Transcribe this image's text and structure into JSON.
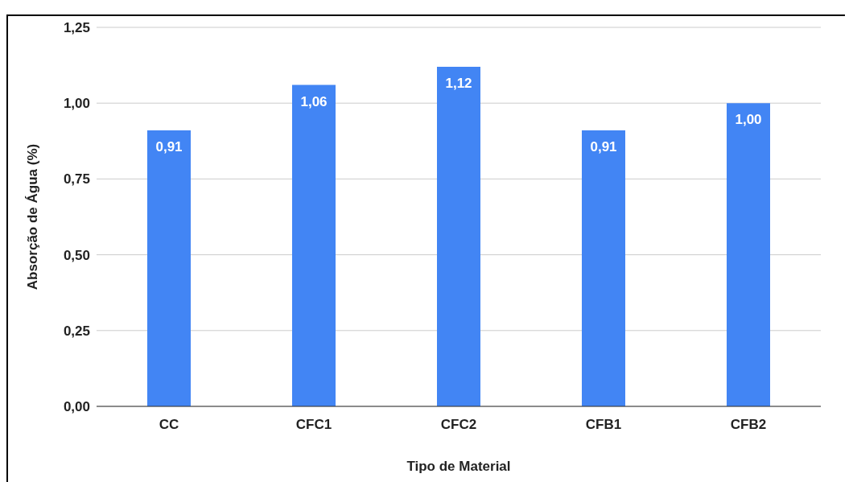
{
  "chart_data": {
    "type": "bar",
    "xlabel": "Tipo de Material",
    "ylabel": "Absorção de Água (%)",
    "categories": [
      "CC",
      "CFC1",
      "CFC2",
      "CFB1",
      "CFB2"
    ],
    "values": [
      0.91,
      1.06,
      1.12,
      0.91,
      1.0
    ],
    "value_labels": [
      "0,91",
      "1,06",
      "1,12",
      "0,91",
      "1,00"
    ],
    "color": "#4285f4",
    "ylim": [
      0,
      1.25
    ],
    "yticks": [
      {
        "value": 0,
        "label": "0,00"
      },
      {
        "value": 0.25,
        "label": "0,25"
      },
      {
        "value": 0.5,
        "label": "0,50"
      },
      {
        "value": 0.75,
        "label": "0,75"
      },
      {
        "value": 1,
        "label": "1,00"
      },
      {
        "value": 1.25,
        "label": "1,25"
      }
    ],
    "grid": "y"
  }
}
